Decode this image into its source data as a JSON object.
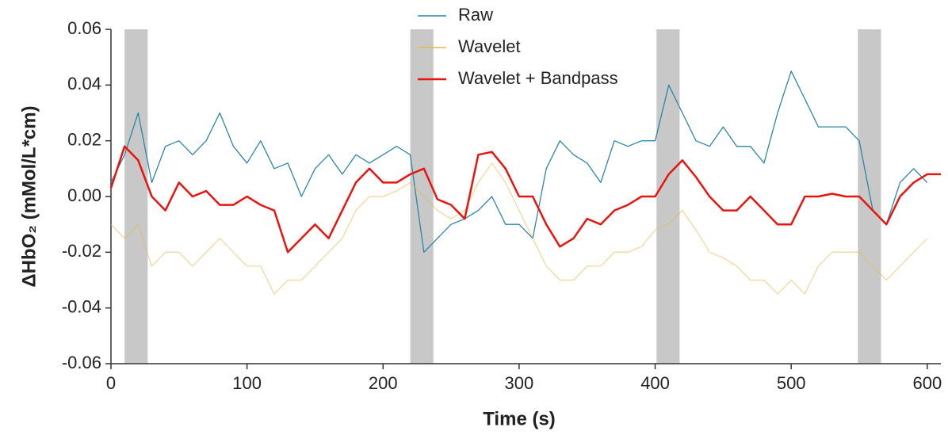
{
  "chart_data": {
    "type": "line",
    "x_label": "Time (s)",
    "y_label": "ΔHbO₂ (mMol/L*cm)",
    "xlim": [
      0,
      610
    ],
    "ylim": [
      -0.06,
      0.06
    ],
    "xticks": [
      0,
      100,
      200,
      300,
      400,
      500,
      600
    ],
    "yticks": [
      -0.06,
      -0.04,
      -0.02,
      {
        "value": 0,
        "label": "0.00"
      },
      0.02,
      0.04,
      0.06
    ],
    "shaded_regions": [
      [
        10,
        27
      ],
      [
        220,
        237
      ],
      [
        401,
        418
      ],
      [
        549,
        566
      ]
    ],
    "shade_color": "#c8c8c8",
    "legend": "top-center",
    "x": [
      0,
      10,
      20,
      30,
      40,
      50,
      60,
      70,
      80,
      90,
      100,
      110,
      120,
      130,
      140,
      150,
      160,
      170,
      180,
      190,
      200,
      210,
      220,
      230,
      240,
      250,
      260,
      270,
      280,
      290,
      300,
      310,
      320,
      330,
      340,
      350,
      360,
      370,
      380,
      390,
      400,
      410,
      420,
      430,
      440,
      450,
      460,
      470,
      480,
      490,
      500,
      510,
      520,
      530,
      540,
      550,
      560,
      570,
      580,
      590,
      600,
      610
    ],
    "series": [
      {
        "name": "Raw",
        "color": "#2a86a8",
        "values": [
          0.005,
          0.015,
          0.03,
          0.005,
          0.018,
          0.02,
          0.015,
          0.02,
          0.03,
          0.018,
          0.012,
          0.02,
          0.01,
          0.012,
          0.0,
          0.01,
          0.015,
          0.008,
          0.015,
          0.012,
          0.015,
          0.018,
          0.015,
          -0.02,
          -0.015,
          -0.01,
          -0.008,
          -0.005,
          0.0,
          -0.01,
          -0.01,
          -0.015,
          0.01,
          0.02,
          0.015,
          0.012,
          0.005,
          0.02,
          0.018,
          0.02,
          0.02,
          0.04,
          0.03,
          0.02,
          0.018,
          0.025,
          0.018,
          0.018,
          0.012,
          0.03,
          0.045,
          0.035,
          0.025,
          0.025,
          0.025,
          0.02,
          -0.005,
          -0.01,
          0.005,
          0.01,
          0.005,
          null
        ]
      },
      {
        "name": "Wavelet",
        "color": "#e8b84a",
        "values": [
          -0.01,
          -0.015,
          -0.01,
          -0.025,
          -0.02,
          -0.02,
          -0.025,
          -0.02,
          -0.015,
          -0.02,
          -0.025,
          -0.025,
          -0.035,
          -0.03,
          -0.03,
          -0.025,
          -0.02,
          -0.015,
          -0.005,
          0.0,
          0.0,
          0.002,
          0.005,
          0.0,
          -0.005,
          -0.008,
          -0.005,
          0.005,
          0.012,
          0.005,
          -0.005,
          -0.015,
          -0.025,
          -0.03,
          -0.03,
          -0.025,
          -0.025,
          -0.02,
          -0.02,
          -0.018,
          -0.012,
          -0.01,
          -0.005,
          -0.012,
          -0.02,
          -0.022,
          -0.025,
          -0.03,
          -0.03,
          -0.035,
          -0.03,
          -0.035,
          -0.025,
          -0.02,
          -0.02,
          -0.02,
          -0.025,
          -0.03,
          -0.025,
          -0.02,
          -0.015,
          null
        ]
      },
      {
        "name": "Wavelet + Bandpass",
        "color": "#e8150f",
        "values": [
          0.003,
          0.018,
          0.013,
          0.0,
          -0.005,
          0.005,
          0.0,
          0.002,
          -0.003,
          -0.003,
          0.0,
          -0.003,
          -0.005,
          -0.02,
          -0.015,
          -0.01,
          -0.015,
          -0.005,
          0.005,
          0.01,
          0.005,
          0.005,
          0.008,
          0.01,
          -0.001,
          -0.003,
          -0.008,
          0.015,
          0.016,
          0.01,
          0.0,
          0.0,
          -0.01,
          -0.018,
          -0.015,
          -0.008,
          -0.01,
          -0.005,
          -0.003,
          0.0,
          0.0,
          0.008,
          0.013,
          0.007,
          0.0,
          -0.005,
          -0.005,
          0.0,
          -0.005,
          -0.01,
          -0.01,
          0.0,
          0.0,
          0.001,
          0.0,
          0.0,
          -0.005,
          -0.01,
          0.0,
          0.005,
          0.008,
          0.008
        ]
      }
    ]
  }
}
